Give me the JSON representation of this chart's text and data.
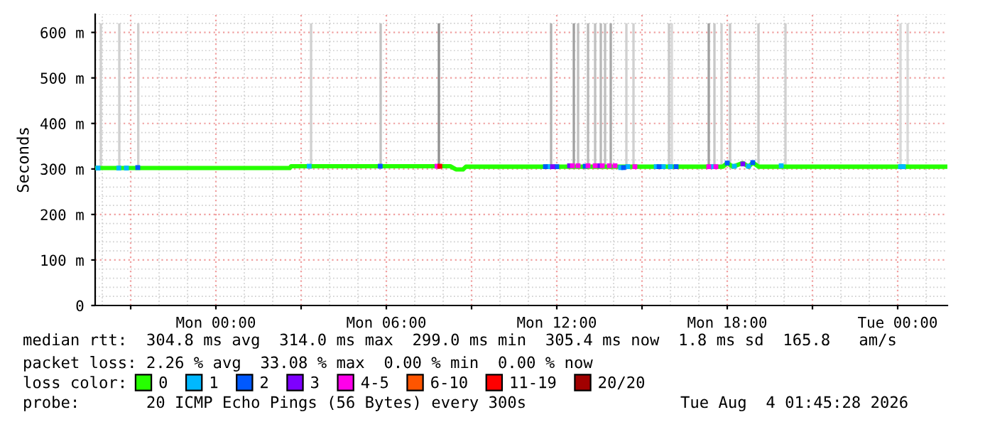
{
  "chart_data": {
    "type": "line",
    "ylabel": "Seconds",
    "legend_title": "loss color:",
    "legend": "bottom",
    "grid": true,
    "xlim": [
      "2026-08-02T19:45",
      "2026-08-04T01:45"
    ],
    "xticks": [
      {
        "value": "2026-08-02T21:00",
        "label": null
      },
      {
        "value": "2026-08-03T00:00",
        "label": "Mon 00:00"
      },
      {
        "value": "2026-08-03T03:00",
        "label": null
      },
      {
        "value": "2026-08-03T06:00",
        "label": "Mon 06:00"
      },
      {
        "value": "2026-08-03T09:00",
        "label": null
      },
      {
        "value": "2026-08-03T12:00",
        "label": "Mon 12:00"
      },
      {
        "value": "2026-08-03T15:00",
        "label": null
      },
      {
        "value": "2026-08-03T18:00",
        "label": "Mon 18:00"
      },
      {
        "value": "2026-08-03T21:00",
        "label": null
      },
      {
        "value": "2026-08-04T00:00",
        "label": "Tue 00:00"
      }
    ],
    "ylim": [
      0,
      640
    ],
    "yticks": [
      {
        "value": 0,
        "label": "0"
      },
      {
        "value": 100,
        "label": "100 m"
      },
      {
        "value": 200,
        "label": "200 m"
      },
      {
        "value": 300,
        "label": "300 m"
      },
      {
        "value": 400,
        "label": "400 m"
      },
      {
        "value": 500,
        "label": "500 m"
      },
      {
        "value": 600,
        "label": "600 m"
      }
    ],
    "series": [
      {
        "type": "bar",
        "x": [
          "2026-08-02T19:57",
          "2026-08-02T20:36",
          "2026-08-02T21:16",
          "2026-08-03T03:21",
          "2026-08-03T05:48",
          "2026-08-03T07:51",
          "2026-08-03T11:48",
          "2026-08-03T12:36",
          "2026-08-03T12:45",
          "2026-08-03T13:06",
          "2026-08-03T13:21",
          "2026-08-03T13:33",
          "2026-08-03T13:42",
          "2026-08-03T13:54",
          "2026-08-03T14:27",
          "2026-08-03T14:42",
          "2026-08-03T15:57",
          "2026-08-03T16:03",
          "2026-08-03T17:21",
          "2026-08-03T17:33",
          "2026-08-03T17:48",
          "2026-08-03T18:06",
          "2026-08-03T19:06",
          "2026-08-03T20:03",
          "2026-08-04T00:06",
          "2026-08-04T00:21"
        ],
        "base": [
          300,
          300,
          300,
          300,
          300,
          300,
          300,
          300,
          300,
          300,
          300,
          300,
          300,
          300,
          300,
          300,
          300,
          300,
          300,
          300,
          300,
          300,
          300,
          300,
          300,
          300
        ],
        "values": [
          320,
          320,
          320,
          320,
          320,
          320,
          320,
          320,
          320,
          320,
          320,
          320,
          320,
          320,
          320,
          320,
          320,
          320,
          320,
          320,
          320,
          320,
          320,
          320,
          320,
          320
        ],
        "colors": [
          "#d0d0d0",
          "#d0d0d0",
          "#d0d0d0",
          "#d0d0d0",
          "#c0c0c0",
          "#909090",
          "#b0b0b0",
          "#a0a0a0",
          "#c0c0c0",
          "#b8b8b8",
          "#c0c0c0",
          "#b8b8b8",
          "#c0c0c0",
          "#a8a8a8",
          "#d0d0d0",
          "#d0d0d0",
          "#c8c8c8",
          "#d8d8d8",
          "#a0a0a0",
          "#c8c8c8",
          "#d0d0d0",
          "#c8c8c8",
          "#c8c8c8",
          "#d0d0d0",
          "#d8d8d8",
          "#d8d8d8"
        ]
      },
      {
        "name": "0",
        "color": "#26ff00",
        "x": [
          "2026-08-02T19:45",
          "2026-08-03T02:36",
          "2026-08-03T02:39",
          "2026-08-03T08:15",
          "2026-08-03T08:27",
          "2026-08-03T08:42",
          "2026-08-03T08:48",
          "2026-08-03T17:51",
          "2026-08-03T18:00",
          "2026-08-03T18:12",
          "2026-08-03T18:33",
          "2026-08-03T18:45",
          "2026-08-03T18:54",
          "2026-08-03T19:06",
          "2026-08-03T19:15",
          "2026-08-04T01:45"
        ],
        "values": [
          302,
          302,
          306,
          306,
          299,
          299,
          305,
          305,
          313,
          305,
          313,
          305,
          314,
          305,
          305,
          305
        ]
      },
      {
        "name": "1",
        "type": "scatter",
        "color": "#00b8ff",
        "x": [
          "2026-08-02T19:51",
          "2026-08-02T20:35",
          "2026-08-02T20:51",
          "2026-08-03T03:17",
          "2026-08-03T11:42",
          "2026-08-03T14:15",
          "2026-08-03T14:30",
          "2026-08-03T15:30",
          "2026-08-03T15:45",
          "2026-08-03T16:00",
          "2026-08-03T17:30",
          "2026-08-03T18:15",
          "2026-08-03T18:45",
          "2026-08-03T19:54",
          "2026-08-04T00:06",
          "2026-08-04T00:12"
        ],
        "values": [
          302,
          302,
          302,
          306,
          305,
          303,
          305,
          305,
          305,
          305,
          305,
          306,
          306,
          307,
          305,
          305
        ]
      },
      {
        "name": "2",
        "type": "scatter",
        "color": "#0059ff",
        "x": [
          "2026-08-02T21:15",
          "2026-08-03T05:47",
          "2026-08-03T11:36",
          "2026-08-03T12:00",
          "2026-08-03T13:00",
          "2026-08-03T14:21",
          "2026-08-03T15:36",
          "2026-08-03T16:12",
          "2026-08-03T18:00",
          "2026-08-03T18:54"
        ],
        "values": [
          303,
          306,
          305,
          305,
          306,
          303,
          305,
          305,
          313,
          314
        ]
      },
      {
        "name": "3",
        "type": "scatter",
        "color": "#7e00ff",
        "x": [
          "2026-08-03T11:51",
          "2026-08-03T12:27",
          "2026-08-03T13:30",
          "2026-08-03T18:33"
        ],
        "values": [
          305,
          307,
          307,
          311
        ]
      },
      {
        "name": "4-5",
        "type": "scatter",
        "color": "#ff00ea",
        "x": [
          "2026-08-03T07:47",
          "2026-08-03T12:33",
          "2026-08-03T12:45",
          "2026-08-03T13:06",
          "2026-08-03T13:21",
          "2026-08-03T13:36",
          "2026-08-03T13:51",
          "2026-08-03T14:03",
          "2026-08-03T14:45",
          "2026-08-03T17:21",
          "2026-08-03T17:36"
        ],
        "values": [
          306,
          307,
          307,
          307,
          307,
          307,
          307,
          307,
          305,
          305,
          305
        ]
      },
      {
        "name": "6-10",
        "type": "scatter",
        "color": "#ff5500"
      },
      {
        "name": "11-19",
        "type": "scatter",
        "color": "#ff0000",
        "x": [
          "2026-08-03T07:53"
        ],
        "values": [
          306
        ]
      },
      {
        "name": "20/20",
        "type": "scatter",
        "color": "#a10000"
      }
    ],
    "annotations": [
      "median rtt:  304.8 ms avg  314.0 ms max  299.0 ms min  305.4 ms now  1.8 ms sd  165.8   am/s",
      "packet loss: 2.26 % avg  33.08 % max  0.00 % min  0.00 % now",
      "probe:       20 ICMP Echo Pings (56 Bytes) every 300s",
      "Tue Aug  4 01:45:28 2026"
    ]
  }
}
